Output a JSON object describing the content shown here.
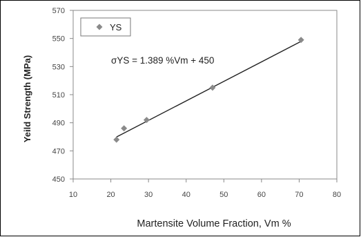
{
  "chart_data": {
    "type": "scatter",
    "xlabel": "Martensite Volume Fraction,  Vm %",
    "ylabel": "Yeild Strength  (MPa)",
    "xlim": [
      10,
      80
    ],
    "ylim": [
      450,
      570
    ],
    "xticks": [
      10,
      20,
      30,
      40,
      50,
      60,
      70,
      80
    ],
    "yticks": [
      450,
      470,
      490,
      510,
      530,
      550,
      570
    ],
    "grid": false,
    "legend": {
      "entries": [
        "YS"
      ],
      "placement": "top-left"
    },
    "series": [
      {
        "name": "YS",
        "marker": "diamond",
        "color": "#8a8a8a",
        "x": [
          21.5,
          23.5,
          29.5,
          47,
          70.5
        ],
        "y": [
          478,
          486,
          492,
          515,
          549
        ]
      }
    ],
    "trendline": {
      "slope": 1.389,
      "intercept": 450,
      "x_range": [
        21.5,
        70.5
      ],
      "color": "#222222"
    },
    "annotation": "σYS = 1.389 %Vm +  450"
  }
}
